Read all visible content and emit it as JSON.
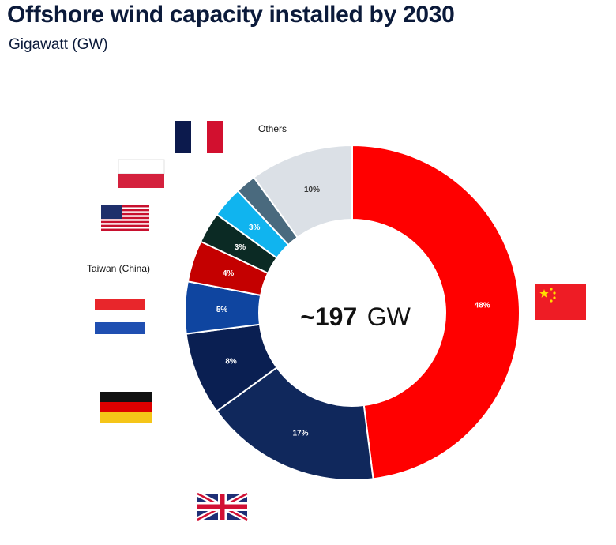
{
  "header": {
    "title": "Offshore wind capacity installed by 2030",
    "subtitle": "Gigawatt (GW)"
  },
  "center": {
    "value": "~197",
    "unit": "GW"
  },
  "chart_data": {
    "type": "donut",
    "total": "~197 GW",
    "unit": "GW",
    "slices": [
      {
        "label": "China",
        "value": 48,
        "value_label": "48%",
        "color": "#ff0000",
        "label_color": "#ffffff",
        "icon": "china-flag"
      },
      {
        "label": "United Kingdom",
        "value": 17,
        "value_label": "17%",
        "color": "#10285c",
        "label_color": "#ffffff",
        "icon": "uk-flag"
      },
      {
        "label": "Germany",
        "value": 8,
        "value_label": "8%",
        "color": "#0a1f52",
        "label_color": "#ffffff",
        "icon": "germany-flag"
      },
      {
        "label": "Netherlands",
        "value": 5,
        "value_label": "5%",
        "color": "#0f45a0",
        "label_color": "#ffffff",
        "icon": "netherlands-flag"
      },
      {
        "label": "Taiwan (China)",
        "value": 4,
        "value_label": "4%",
        "color": "#c40000",
        "label_color": "#ffffff",
        "icon": ""
      },
      {
        "label": "United States",
        "value": 3,
        "value_label": "3%",
        "color": "#0b2a24",
        "label_color": "#ffffff",
        "icon": "usa-flag"
      },
      {
        "label": "Poland",
        "value": 3,
        "value_label": "3%",
        "color": "#10b4ef",
        "label_color": "#ffffff",
        "icon": "poland-flag"
      },
      {
        "label": "France",
        "value": 2,
        "value_label": "",
        "color": "#4a6a7e",
        "label_color": "#ffffff",
        "icon": "france-flag"
      },
      {
        "label": "Others",
        "value": 10,
        "value_label": "10%",
        "color": "#dbe0e6",
        "label_color": "#333333",
        "icon": ""
      }
    ],
    "side_labels": [
      "Others",
      "Taiwan (China)"
    ]
  }
}
